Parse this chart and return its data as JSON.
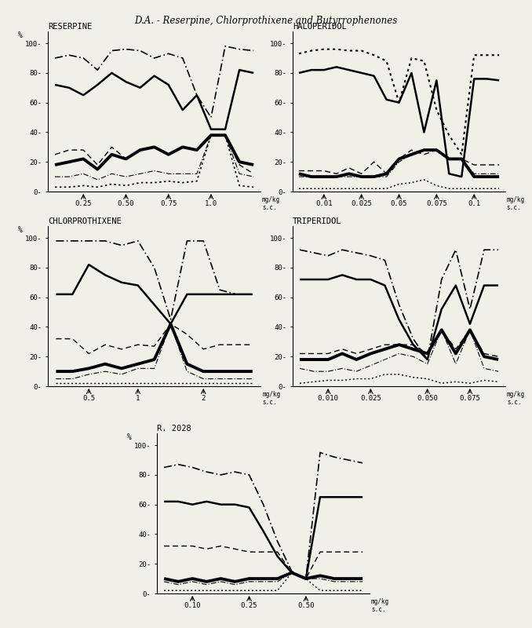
{
  "title": "D.A. - Reserpine, Chlorprothixene and Butyrrophenones",
  "background_color": "#f0efe8",
  "panels": [
    {
      "name": "RESERPINE",
      "xlabel_ticks": [
        "0.25",
        "0.50",
        "0.75",
        "1.0"
      ],
      "xlabel_unit": "mg/kg\ns.c.",
      "tick_xpos": [
        2,
        5,
        8,
        11
      ],
      "xvals": [
        0,
        1,
        2,
        3,
        4,
        5,
        6,
        7,
        8,
        9,
        10,
        11,
        12,
        13,
        14
      ],
      "lines": [
        {
          "style": "dashdot",
          "lw": 1.2,
          "y": [
            90,
            92,
            90,
            82,
            95,
            96,
            95,
            90,
            93,
            90,
            65,
            50,
            98,
            96,
            95
          ]
        },
        {
          "style": "solid",
          "lw": 1.8,
          "y": [
            72,
            70,
            65,
            72,
            80,
            74,
            70,
            78,
            72,
            55,
            65,
            42,
            42,
            82,
            80
          ]
        },
        {
          "style": "dashed",
          "lw": 1.0,
          "y": [
            25,
            28,
            28,
            18,
            30,
            22,
            28,
            30,
            25,
            30,
            28,
            38,
            38,
            18,
            12
          ]
        },
        {
          "style": "solid",
          "lw": 2.8,
          "y": [
            18,
            20,
            22,
            15,
            25,
            22,
            28,
            30,
            25,
            30,
            28,
            38,
            38,
            20,
            18
          ]
        },
        {
          "style": "dashdot",
          "lw": 0.8,
          "y": [
            10,
            10,
            12,
            8,
            12,
            10,
            12,
            14,
            12,
            12,
            12,
            38,
            38,
            12,
            10
          ]
        },
        {
          "style": "dotted",
          "lw": 1.2,
          "y": [
            3,
            3,
            4,
            3,
            5,
            4,
            6,
            6,
            7,
            6,
            7,
            38,
            38,
            4,
            3
          ]
        }
      ]
    },
    {
      "name": "HALOPERIDOL",
      "xlabel_ticks": [
        "0.01",
        "0.025",
        "0.05",
        "0.075",
        "0.1"
      ],
      "xlabel_unit": "mg/kg\ns.c.",
      "tick_xpos": [
        2,
        5,
        8,
        11,
        14
      ],
      "xvals": [
        0,
        1,
        2,
        3,
        4,
        5,
        6,
        7,
        8,
        9,
        10,
        11,
        12,
        13,
        14,
        15,
        16
      ],
      "lines": [
        {
          "style": "dotted",
          "lw": 1.5,
          "y": [
            93,
            95,
            96,
            96,
            95,
            95,
            92,
            88,
            60,
            90,
            88,
            55,
            38,
            25,
            92,
            92,
            92
          ]
        },
        {
          "style": "solid",
          "lw": 1.8,
          "y": [
            80,
            82,
            82,
            84,
            82,
            80,
            78,
            62,
            60,
            80,
            40,
            75,
            12,
            10,
            76,
            76,
            75
          ]
        },
        {
          "style": "dashed",
          "lw": 1.0,
          "y": [
            14,
            14,
            14,
            12,
            16,
            12,
            20,
            12,
            22,
            28,
            25,
            28,
            22,
            22,
            18,
            18,
            18
          ]
        },
        {
          "style": "solid",
          "lw": 2.8,
          "y": [
            12,
            10,
            10,
            10,
            12,
            10,
            10,
            12,
            22,
            25,
            28,
            28,
            22,
            22,
            10,
            10,
            10
          ]
        },
        {
          "style": "dashdot",
          "lw": 0.8,
          "y": [
            10,
            10,
            10,
            10,
            10,
            10,
            10,
            10,
            20,
            25,
            28,
            28,
            22,
            22,
            12,
            12,
            12
          ]
        },
        {
          "style": "dotted",
          "lw": 1.0,
          "y": [
            2,
            2,
            2,
            2,
            2,
            2,
            2,
            2,
            5,
            6,
            8,
            4,
            2,
            2,
            2,
            2,
            2
          ]
        }
      ]
    },
    {
      "name": "CHLORPROTHIXENE",
      "xlabel_ticks": [
        "0.5",
        "1",
        "2"
      ],
      "xlabel_unit": "mg/kg\ns.c.",
      "tick_xpos": [
        2,
        5,
        9
      ],
      "xvals": [
        0,
        1,
        2,
        3,
        4,
        5,
        6,
        7,
        8,
        9,
        10,
        11,
        12
      ],
      "lines": [
        {
          "style": "dashdot",
          "lw": 1.2,
          "y": [
            98,
            98,
            98,
            98,
            95,
            98,
            80,
            45,
            98,
            98,
            65,
            62,
            62
          ]
        },
        {
          "style": "solid",
          "lw": 1.8,
          "y": [
            62,
            62,
            82,
            75,
            70,
            68,
            55,
            42,
            62,
            62,
            62,
            62,
            62
          ]
        },
        {
          "style": "dashed",
          "lw": 1.0,
          "y": [
            32,
            32,
            22,
            28,
            25,
            28,
            27,
            42,
            35,
            25,
            28,
            28,
            28
          ]
        },
        {
          "style": "solid",
          "lw": 2.8,
          "y": [
            10,
            10,
            12,
            15,
            12,
            15,
            18,
            42,
            15,
            10,
            10,
            10,
            10
          ]
        },
        {
          "style": "dashdot",
          "lw": 0.8,
          "y": [
            5,
            5,
            8,
            10,
            8,
            12,
            12,
            42,
            10,
            5,
            5,
            5,
            5
          ]
        },
        {
          "style": "dotted",
          "lw": 1.0,
          "y": [
            2,
            2,
            2,
            2,
            2,
            2,
            2,
            2,
            2,
            2,
            2,
            2,
            2
          ]
        }
      ]
    },
    {
      "name": "TRIPERIDOL",
      "xlabel_ticks": [
        "0.010",
        "0.025",
        "0.050",
        "0.075"
      ],
      "xlabel_unit": "mg/kg\ns.c.",
      "tick_xpos": [
        2,
        5,
        9,
        12
      ],
      "xvals": [
        0,
        1,
        2,
        3,
        4,
        5,
        6,
        7,
        8,
        9,
        10,
        11,
        12,
        13,
        14
      ],
      "lines": [
        {
          "style": "dashdot",
          "lw": 1.2,
          "y": [
            92,
            90,
            88,
            92,
            90,
            88,
            85,
            55,
            32,
            18,
            72,
            92,
            52,
            92,
            92
          ]
        },
        {
          "style": "solid",
          "lw": 1.8,
          "y": [
            72,
            72,
            72,
            75,
            72,
            72,
            68,
            45,
            28,
            18,
            52,
            68,
            42,
            68,
            68
          ]
        },
        {
          "style": "dashed",
          "lw": 1.0,
          "y": [
            22,
            22,
            22,
            25,
            22,
            25,
            28,
            28,
            28,
            22,
            38,
            25,
            38,
            22,
            20
          ]
        },
        {
          "style": "solid",
          "lw": 2.8,
          "y": [
            18,
            18,
            18,
            22,
            18,
            22,
            25,
            28,
            25,
            22,
            38,
            22,
            38,
            20,
            18
          ]
        },
        {
          "style": "dashdot",
          "lw": 0.8,
          "y": [
            12,
            10,
            10,
            12,
            10,
            14,
            18,
            22,
            20,
            15,
            38,
            15,
            38,
            12,
            10
          ]
        },
        {
          "style": "dotted",
          "lw": 1.0,
          "y": [
            2,
            3,
            4,
            4,
            5,
            5,
            8,
            8,
            6,
            5,
            2,
            3,
            2,
            4,
            3
          ]
        }
      ]
    },
    {
      "name": "R. 2028",
      "xlabel_ticks": [
        "0.10",
        "0.25",
        "0.50"
      ],
      "xlabel_unit": "mg/kg\ns.c.",
      "tick_xpos": [
        2,
        6,
        10
      ],
      "xvals": [
        0,
        1,
        2,
        3,
        4,
        5,
        6,
        7,
        8,
        9,
        10,
        11,
        12,
        13,
        14
      ],
      "lines": [
        {
          "style": "dashdot",
          "lw": 1.2,
          "y": [
            85,
            87,
            85,
            82,
            80,
            82,
            80,
            60,
            35,
            15,
            10,
            95,
            92,
            90,
            88
          ]
        },
        {
          "style": "solid",
          "lw": 1.8,
          "y": [
            62,
            62,
            60,
            62,
            60,
            60,
            58,
            42,
            25,
            14,
            10,
            65,
            65,
            65,
            65
          ]
        },
        {
          "style": "dashed",
          "lw": 1.0,
          "y": [
            32,
            32,
            32,
            30,
            32,
            30,
            28,
            28,
            28,
            14,
            10,
            28,
            28,
            28,
            28
          ]
        },
        {
          "style": "solid",
          "lw": 2.8,
          "y": [
            10,
            8,
            10,
            8,
            10,
            8,
            10,
            10,
            10,
            14,
            10,
            12,
            10,
            10,
            10
          ]
        },
        {
          "style": "dashdot",
          "lw": 0.8,
          "y": [
            8,
            6,
            8,
            6,
            8,
            6,
            8,
            8,
            8,
            14,
            10,
            10,
            8,
            8,
            8
          ]
        },
        {
          "style": "dotted",
          "lw": 1.0,
          "y": [
            2,
            2,
            2,
            2,
            2,
            2,
            2,
            2,
            2,
            14,
            10,
            2,
            2,
            2,
            2
          ]
        }
      ]
    }
  ]
}
